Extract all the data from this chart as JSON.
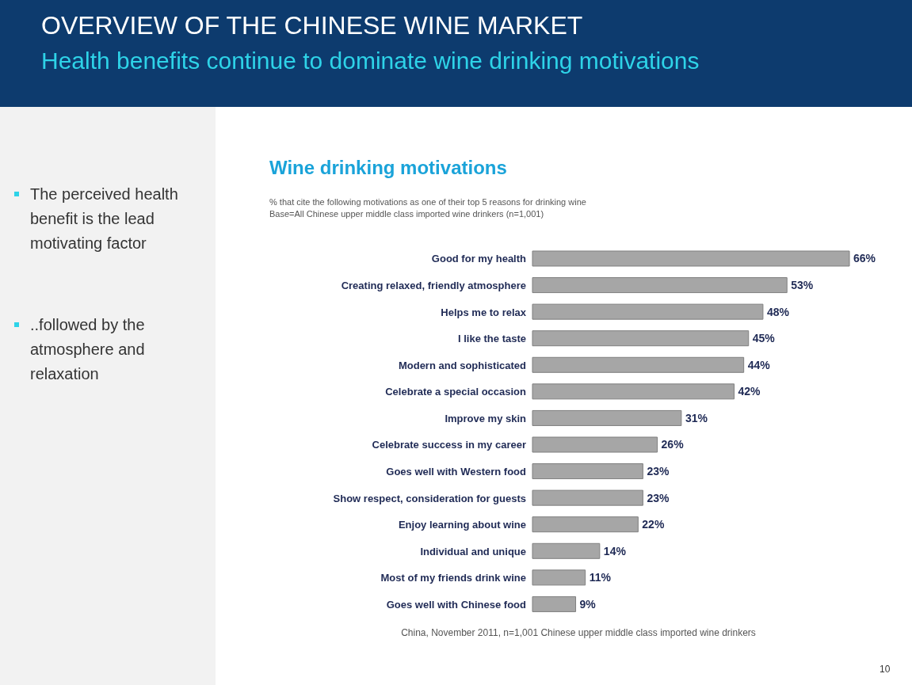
{
  "chart_data": {
    "type": "bar",
    "orientation": "horizontal",
    "title": "OVERVIEW OF THE CHINESE WINE MARKET",
    "subtitle": "Health benefits continue to dominate wine drinking motivations",
    "categories": [
      "Good for my health",
      "Creating relaxed, friendly atmosphere",
      "Helps me to relax",
      "I like the taste",
      "Modern and sophisticated",
      "Celebrate a special occasion",
      "Improve my skin",
      "Celebrate success in my career",
      "Goes well with Western food",
      "Show respect, consideration for guests",
      "Enjoy learning about wine",
      "Individual and unique",
      "Most of my friends drink wine",
      "Goes well with Chinese food"
    ],
    "values": [
      66,
      53,
      48,
      45,
      44,
      42,
      31,
      26,
      23,
      23,
      22,
      14,
      11,
      9
    ],
    "value_labels": [
      "66%",
      "53%",
      "48%",
      "45%",
      "44%",
      "42%",
      "31%",
      "26%",
      "23%",
      "23%",
      "22%",
      "14%",
      "11%",
      "9%"
    ],
    "color": "#a6a6a6",
    "annotations": [
      "Wine drinking motivations",
      "% that cite the following motivations as one of their top 5 reasons for drinking wine",
      "Base=All Chinese upper middle class imported wine drinkers (n=1,001)",
      "The perceived health benefit is the lead motivating factor",
      "..followed by the atmosphere and relaxation",
      "China, November 2011, n=1,001 Chinese upper middle class imported wine drinkers",
      "10"
    ]
  }
}
